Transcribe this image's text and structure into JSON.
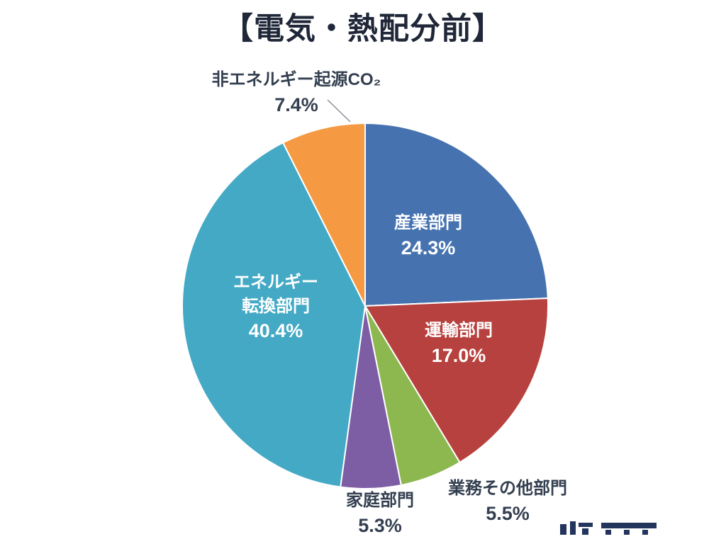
{
  "chart_data": {
    "type": "pie",
    "title": "【電気・熱配分前】",
    "start_angle_deg": -90,
    "direction": "clockwise",
    "legend": "none",
    "slices": [
      {
        "label": "産業部門",
        "value": 24.3,
        "percent_label": "24.3%",
        "color": "#4673b0",
        "label_placement": "inside"
      },
      {
        "label": "運輸部門",
        "value": 17.0,
        "percent_label": "17.0%",
        "color": "#b7413e",
        "label_placement": "inside"
      },
      {
        "label": "業務その他部門",
        "value": 5.5,
        "percent_label": "5.5%",
        "color": "#8cb84f",
        "label_placement": "outside-bottom-right"
      },
      {
        "label": "家庭部門",
        "value": 5.3,
        "percent_label": "5.3%",
        "color": "#7d5da3",
        "label_placement": "outside-bottom"
      },
      {
        "label": "エネルギー転換部門",
        "value": 40.4,
        "percent_label": "40.4%",
        "color": "#44a9c5",
        "label_placement": "inside",
        "label_lines": [
          "エネルギー",
          "転換部門",
          "40.4%"
        ]
      },
      {
        "label": "非エネルギー起源CO₂",
        "value": 7.4,
        "percent_label": "7.4%",
        "color": "#f59a42",
        "label_placement": "outside-top"
      }
    ],
    "slice_border_color": "#ffffff",
    "text_colors": {
      "inside_labels": "#ffffff",
      "outside_labels": "#333f50",
      "title": "#1f2738"
    }
  }
}
